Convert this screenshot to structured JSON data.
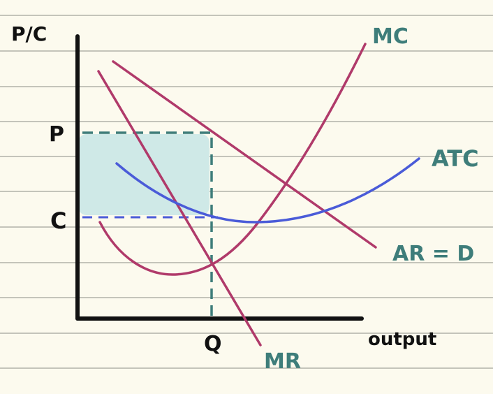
{
  "labels": {
    "y_axis": "P/C",
    "x_axis": "output",
    "price": "P",
    "cost": "C",
    "quantity": "Q",
    "mc": "MC",
    "atc": "ATC",
    "ar_d": "AR = D",
    "mr": "MR"
  },
  "colors": {
    "paper": "#fcfaee",
    "ruled_line": "#a3a39c",
    "axis": "#111111",
    "curve_red": "#b03a6a",
    "curve_blue": "#4a5bd8",
    "teal_text": "#3e7d7a",
    "profit_box": "#cfe9e7",
    "dashed_teal": "#3e7d7a",
    "dashed_blue": "#4a5bd8",
    "black_text": "#111111"
  }
}
